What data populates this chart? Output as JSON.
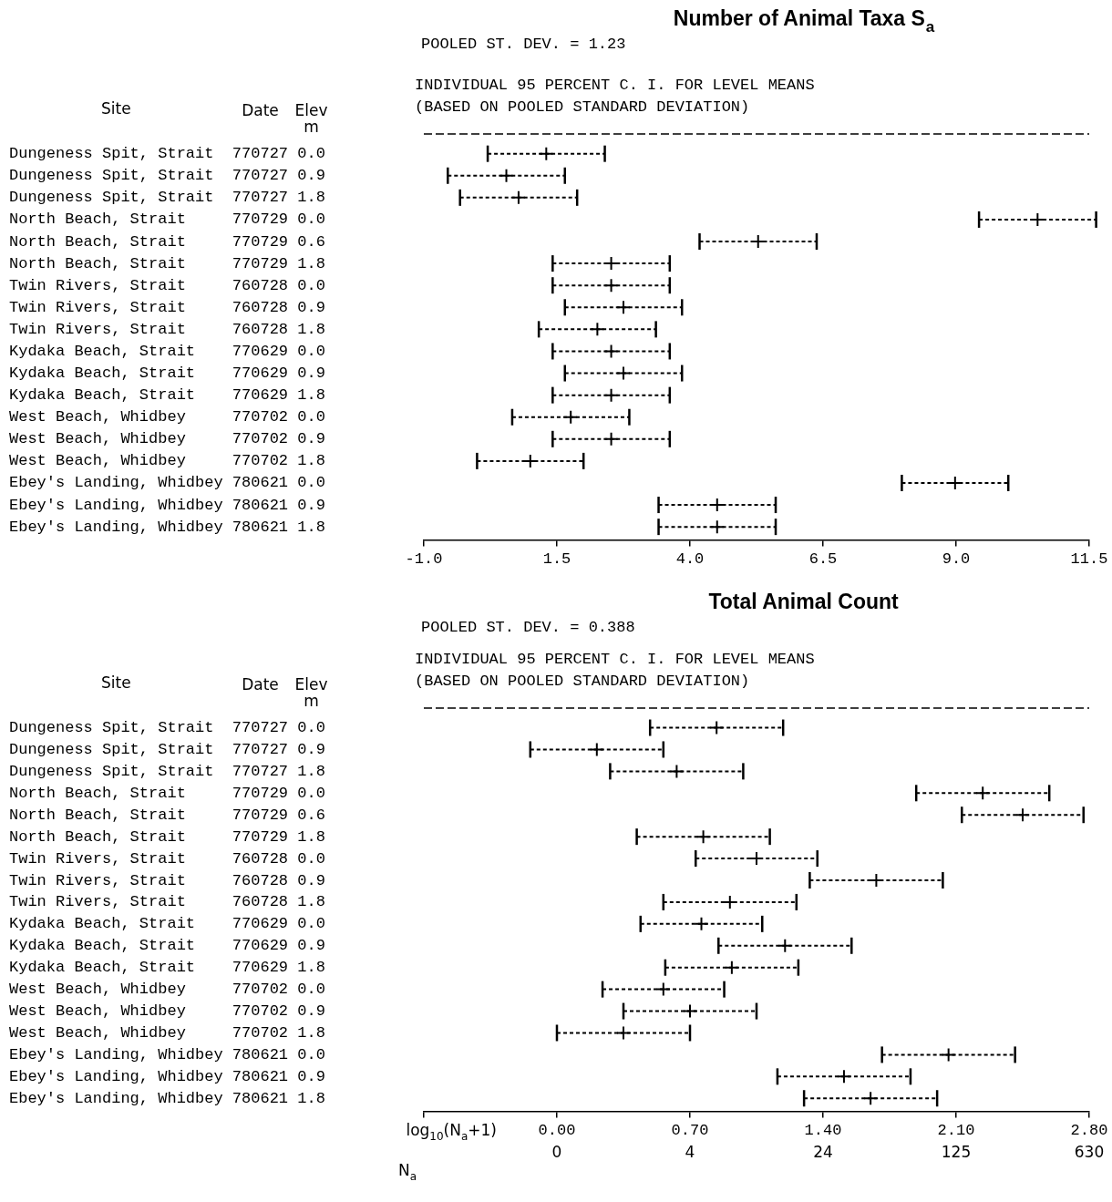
{
  "chart_data": [
    {
      "type": "scatter",
      "orientation": "horizontal",
      "title": "Number of Animal Taxa S$_{a}$",
      "color": "#000000",
      "marker": "cross",
      "annotations": [
        "Site",
        "Date",
        "Elev",
        "m",
        "POOLED ST. DEV. = 1.23",
        "INDIVIDUAL 95 PERCENT C. I. FOR LEVEL MEANS",
        "(BASED ON POOLED STANDARD DEVIATION)"
      ],
      "categories": [
        "Dungeness Spit, Strait 770727 0.0",
        "Dungeness Spit, Strait 770727 0.9",
        "Dungeness Spit, Strait 770727 1.8",
        "North Beach, Strait 770729 0.0",
        "North Beach, Strait 770729 0.6",
        "North Beach, Strait 770729 1.8",
        "Twin Rivers, Strait 760728 0.0",
        "Twin Rivers, Strait 760728 0.9",
        "Twin Rivers, Strait 760728 1.8",
        "Kydaka Beach, Strait 770629 0.0",
        "Kydaka Beach, Strait 770629 0.9",
        "Kydaka Beach, Strait 770629 1.8",
        "West Beach, Whidbey 770702 0.0",
        "West Beach, Whidbey 770702 0.9",
        "West Beach, Whidbey 770702 1.8",
        "Ebey's Landing, Whidbey 780621 0.0",
        "Ebey's Landing, Whidbey 780621 0.9",
        "Ebey's Landing, Whidbey 780621 1.8"
      ],
      "values": [
        1.3,
        0.55,
        0.78,
        10.53,
        5.28,
        2.52,
        2.52,
        2.75,
        2.26,
        2.52,
        2.75,
        2.52,
        1.76,
        2.52,
        1.0,
        8.98,
        4.51,
        4.51
      ],
      "errors": [
        1.1,
        1.1,
        1.1,
        1.1,
        1.1,
        1.1,
        1.1,
        1.1,
        1.1,
        1.1,
        1.1,
        1.1,
        1.1,
        1.1,
        1.0,
        1.0,
        1.1,
        1.1
      ],
      "xlim": [
        -1,
        11.5
      ],
      "xticks": [
        {
          "value": -1,
          "label": "-1.0"
        },
        1.5,
        {
          "value": 4,
          "label": "4.0"
        },
        6.5,
        {
          "value": 9,
          "label": "9.0"
        },
        11.5
      ]
    },
    {
      "type": "scatter",
      "orientation": "horizontal",
      "title": "Total Animal Count",
      "color": "#000000",
      "marker": "cross",
      "xlabel": "log$_{10}$(N$_{a}$+1)",
      "annotations": [
        "Site",
        "Date",
        "Elev",
        "m",
        "POOLED ST. DEV. = 0.388",
        "INDIVIDUAL 95 PERCENT C. I. FOR LEVEL MEANS",
        "(BASED ON POOLED STANDARD DEVIATION)",
        "N$_{a}$",
        "0",
        "4",
        "24",
        "125",
        "630"
      ],
      "categories": [
        "Dungeness Spit, Strait 770727 0.0",
        "Dungeness Spit, Strait 770727 0.9",
        "Dungeness Spit, Strait 770727 1.8",
        "North Beach, Strait 770729 0.0",
        "North Beach, Strait 770729 0.6",
        "North Beach, Strait 770729 1.8",
        "Twin Rivers, Strait 760728 0.0",
        "Twin Rivers, Strait 760728 0.9",
        "Twin Rivers, Strait 760728 1.8",
        "Kydaka Beach, Strait 770629 0.0",
        "Kydaka Beach, Strait 770629 0.9",
        "Kydaka Beach, Strait 770629 1.8",
        "West Beach, Whidbey 770702 0.0",
        "West Beach, Whidbey 770702 0.9",
        "West Beach, Whidbey 770702 1.8",
        "Ebey's Landing, Whidbey 780621 0.0",
        "Ebey's Landing, Whidbey 780621 0.9",
        "Ebey's Landing, Whidbey 780621 1.8"
      ],
      "values": [
        0.84,
        0.21,
        0.63,
        2.24,
        2.45,
        0.77,
        1.05,
        1.68,
        0.91,
        0.76,
        1.2,
        0.92,
        0.56,
        0.7,
        0.35,
        2.06,
        1.51,
        1.65
      ],
      "errors": [
        0.35,
        0.35,
        0.35,
        0.35,
        0.32,
        0.35,
        0.32,
        0.35,
        0.35,
        0.32,
        0.35,
        0.35,
        0.32,
        0.35,
        0.35,
        0.35,
        0.35,
        0.35
      ],
      "xlim": [
        -0.7,
        2.8
      ],
      "xticks": [
        {
          "value": -0.7,
          "label": null
        },
        {
          "value": 0,
          "label": "0.00"
        },
        {
          "value": 0.7,
          "label": "0.70"
        },
        {
          "value": 1.4,
          "label": "1.40"
        },
        {
          "value": 2.1,
          "label": "2.10"
        },
        {
          "value": 2.8,
          "label": "2.80"
        }
      ]
    }
  ]
}
